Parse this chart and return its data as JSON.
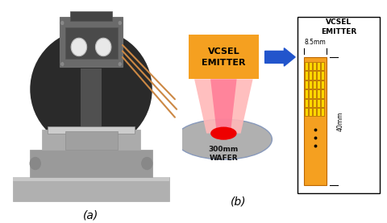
{
  "fig_width": 4.81,
  "fig_height": 2.77,
  "label_a": "(a)",
  "label_b": "(b)",
  "vcsel_box_color": "#F5A020",
  "vcsel_box_text": "VCSEL\nEMITTER",
  "arrow_color": "#2255CC",
  "wafer_color": "#B0B0B0",
  "wafer_edge_color": "#8899BB",
  "emitter_rect_color": "#F5A020",
  "emitter_grid_color": "#FFD700",
  "schematic_title": "VCSEL\nEMITTER",
  "dim_width_label": "8.5mm",
  "dim_height_label": "40mm",
  "photo_bg": "#1A1A1A",
  "photo_box_color": "#707070",
  "photo_stage_color": "#909090",
  "photo_base_color": "#888888"
}
